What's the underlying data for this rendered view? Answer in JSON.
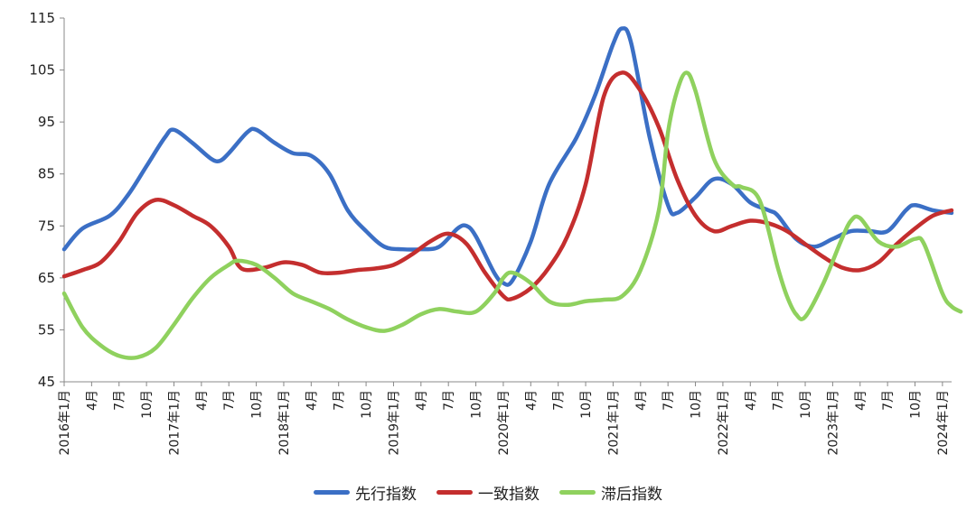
{
  "chart_data": {
    "type": "line",
    "title": "",
    "xlabel": "",
    "ylabel": "",
    "ylim": [
      45,
      115
    ],
    "yticks": [
      45,
      55,
      65,
      75,
      85,
      95,
      105,
      115
    ],
    "grid": false,
    "legend_position": "bottom",
    "x_start": "2016-01",
    "x_end": "2024-02",
    "x_tick_labels": [
      "2016年1月",
      "4月",
      "7月",
      "10月",
      "2017年1月",
      "4月",
      "7月",
      "10月",
      "2018年1月",
      "4月",
      "7月",
      "10月",
      "2019年1月",
      "4月",
      "7月",
      "10月",
      "2020年1月",
      "4月",
      "7月",
      "10月",
      "2021年1月",
      "4月",
      "7月",
      "10月",
      "2022年1月",
      "4月",
      "7月",
      "10月",
      "2023年1月",
      "4月",
      "7月",
      "10月",
      "2024年1月"
    ],
    "series": [
      {
        "name": "先行指数",
        "color": "#3b6fc5",
        "points": [
          [
            "2016-01",
            70.5
          ],
          [
            "2016-03",
            74.5
          ],
          [
            "2016-06",
            77
          ],
          [
            "2016-08",
            81
          ],
          [
            "2016-10",
            86.5
          ],
          [
            "2016-12",
            92
          ],
          [
            "2017-01",
            93.5
          ],
          [
            "2017-03",
            91
          ],
          [
            "2017-05",
            88
          ],
          [
            "2017-06",
            87.5
          ],
          [
            "2017-07",
            89
          ],
          [
            "2017-09",
            93
          ],
          [
            "2017-10",
            93.5
          ],
          [
            "2017-12",
            91
          ],
          [
            "2018-02",
            89
          ],
          [
            "2018-04",
            88.5
          ],
          [
            "2018-06",
            85
          ],
          [
            "2018-08",
            78
          ],
          [
            "2018-10",
            74
          ],
          [
            "2018-12",
            71
          ],
          [
            "2019-02",
            70.5
          ],
          [
            "2019-04",
            70.5
          ],
          [
            "2019-06",
            71
          ],
          [
            "2019-08",
            74.5
          ],
          [
            "2019-09",
            75
          ],
          [
            "2019-10",
            73
          ],
          [
            "2019-12",
            66
          ],
          [
            "2020-01",
            64
          ],
          [
            "2020-02",
            64.5
          ],
          [
            "2020-04",
            72
          ],
          [
            "2020-06",
            83
          ],
          [
            "2020-09",
            92
          ],
          [
            "2020-11",
            100
          ],
          [
            "2021-01",
            110
          ],
          [
            "2021-02",
            113
          ],
          [
            "2021-03",
            110
          ],
          [
            "2021-05",
            92
          ],
          [
            "2021-07",
            79
          ],
          [
            "2021-08",
            77.5
          ],
          [
            "2021-10",
            80.5
          ],
          [
            "2021-12",
            84
          ],
          [
            "2022-02",
            83
          ],
          [
            "2022-04",
            79.5
          ],
          [
            "2022-06",
            78
          ],
          [
            "2022-07",
            77
          ],
          [
            "2022-09",
            72.5
          ],
          [
            "2022-11",
            71
          ],
          [
            "2023-01",
            72.5
          ],
          [
            "2023-03",
            74
          ],
          [
            "2023-05",
            74
          ],
          [
            "2023-07",
            74
          ],
          [
            "2023-09",
            78
          ],
          [
            "2023-10",
            79
          ],
          [
            "2023-12",
            78
          ],
          [
            "2024-02",
            77.5
          ]
        ]
      },
      {
        "name": "一致指数",
        "color": "#c42e2e",
        "points": [
          [
            "2016-01",
            65.3
          ],
          [
            "2016-03",
            66.5
          ],
          [
            "2016-05",
            68
          ],
          [
            "2016-07",
            72
          ],
          [
            "2016-09",
            77.5
          ],
          [
            "2016-11",
            80
          ],
          [
            "2017-01",
            79
          ],
          [
            "2017-03",
            77
          ],
          [
            "2017-05",
            75
          ],
          [
            "2017-07",
            71
          ],
          [
            "2017-08",
            67.5
          ],
          [
            "2017-09",
            66.5
          ],
          [
            "2017-11",
            67
          ],
          [
            "2018-01",
            68
          ],
          [
            "2018-03",
            67.5
          ],
          [
            "2018-05",
            66
          ],
          [
            "2018-07",
            66
          ],
          [
            "2018-09",
            66.5
          ],
          [
            "2018-11",
            66.8
          ],
          [
            "2019-01",
            67.5
          ],
          [
            "2019-03",
            69.5
          ],
          [
            "2019-05",
            72
          ],
          [
            "2019-07",
            73.5
          ],
          [
            "2019-09",
            71.5
          ],
          [
            "2019-11",
            66
          ],
          [
            "2020-01",
            61.5
          ],
          [
            "2020-02",
            61
          ],
          [
            "2020-04",
            63
          ],
          [
            "2020-06",
            67
          ],
          [
            "2020-08",
            73
          ],
          [
            "2020-10",
            83
          ],
          [
            "2020-12",
            100
          ],
          [
            "2021-02",
            104.5
          ],
          [
            "2021-04",
            101
          ],
          [
            "2021-06",
            94
          ],
          [
            "2021-08",
            84
          ],
          [
            "2021-10",
            77
          ],
          [
            "2021-12",
            74
          ],
          [
            "2022-02",
            75
          ],
          [
            "2022-04",
            76
          ],
          [
            "2022-06",
            75.5
          ],
          [
            "2022-08",
            74
          ],
          [
            "2022-10",
            71.5
          ],
          [
            "2022-12",
            69
          ],
          [
            "2023-02",
            67
          ],
          [
            "2023-04",
            66.5
          ],
          [
            "2023-06",
            68
          ],
          [
            "2023-08",
            71.5
          ],
          [
            "2023-10",
            74.5
          ],
          [
            "2023-12",
            77
          ],
          [
            "2024-02",
            78
          ]
        ]
      },
      {
        "name": "滞后指数",
        "color": "#8fd15e",
        "points": [
          [
            "2016-01",
            62
          ],
          [
            "2016-03",
            55.5
          ],
          [
            "2016-05",
            52
          ],
          [
            "2016-07",
            50
          ],
          [
            "2016-09",
            49.7
          ],
          [
            "2016-11",
            51.5
          ],
          [
            "2017-01",
            56
          ],
          [
            "2017-03",
            61
          ],
          [
            "2017-05",
            65
          ],
          [
            "2017-07",
            67.5
          ],
          [
            "2017-08",
            68.3
          ],
          [
            "2017-10",
            67.5
          ],
          [
            "2017-12",
            65
          ],
          [
            "2018-02",
            62
          ],
          [
            "2018-04",
            60.5
          ],
          [
            "2018-06",
            59
          ],
          [
            "2018-08",
            57
          ],
          [
            "2018-10",
            55.5
          ],
          [
            "2018-12",
            54.8
          ],
          [
            "2019-02",
            56
          ],
          [
            "2019-04",
            58
          ],
          [
            "2019-06",
            59
          ],
          [
            "2019-08",
            58.5
          ],
          [
            "2019-10",
            58.5
          ],
          [
            "2019-12",
            62
          ],
          [
            "2020-01",
            65
          ],
          [
            "2020-02",
            66
          ],
          [
            "2020-04",
            64
          ],
          [
            "2020-06",
            60.5
          ],
          [
            "2020-08",
            59.8
          ],
          [
            "2020-10",
            60.5
          ],
          [
            "2020-12",
            60.8
          ],
          [
            "2021-02",
            61.5
          ],
          [
            "2021-04",
            66.5
          ],
          [
            "2021-06",
            78
          ],
          [
            "2021-07",
            93
          ],
          [
            "2021-08",
            101
          ],
          [
            "2021-09",
            104.5
          ],
          [
            "2021-10",
            101
          ],
          [
            "2021-12",
            88
          ],
          [
            "2022-02",
            83
          ],
          [
            "2022-03",
            82.5
          ],
          [
            "2022-05",
            80
          ],
          [
            "2022-07",
            67
          ],
          [
            "2022-08",
            61.5
          ],
          [
            "2022-09",
            58
          ],
          [
            "2022-10",
            57.5
          ],
          [
            "2022-12",
            64
          ],
          [
            "2023-02",
            72.5
          ],
          [
            "2023-03",
            76
          ],
          [
            "2023-04",
            76.5
          ],
          [
            "2023-06",
            72
          ],
          [
            "2023-08",
            71
          ],
          [
            "2023-10",
            72.5
          ],
          [
            "2023-11",
            71.5
          ],
          [
            "2024-01",
            62
          ],
          [
            "2024-02",
            59.5
          ],
          [
            "2024-03",
            58.5
          ]
        ]
      }
    ]
  }
}
